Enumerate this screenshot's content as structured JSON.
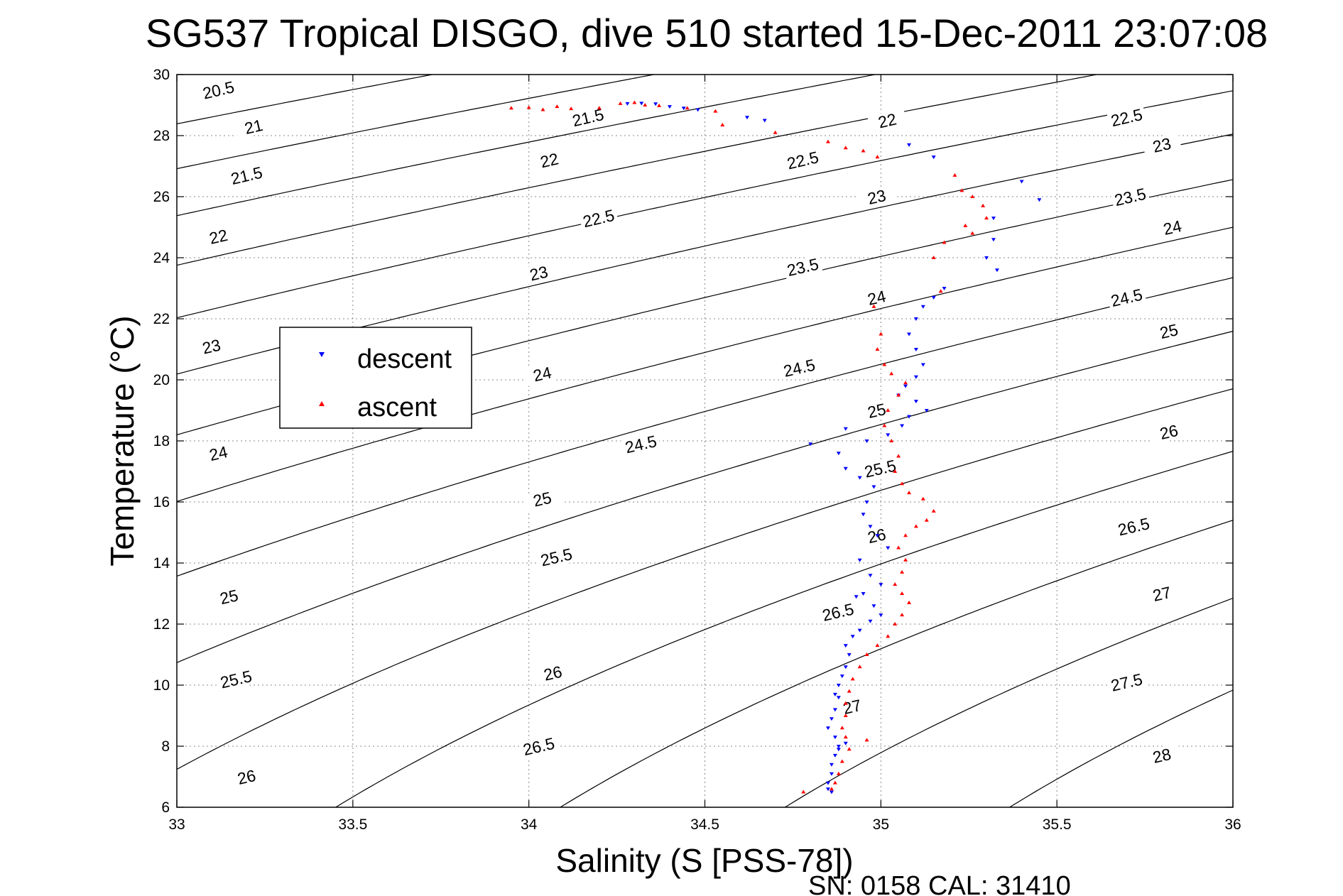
{
  "chart_data": {
    "type": "scatter",
    "title": "SG537 Tropical DISGO, dive 510 started 15-Dec-2011 23:07:08",
    "xlabel": "Salinity (S [PSS-78])",
    "ylabel": "Temperature (°C)",
    "xlim": [
      33,
      36
    ],
    "ylim": [
      6,
      30
    ],
    "xticks": [
      "33",
      "33.5",
      "34",
      "34.5",
      "35",
      "35.5",
      "36"
    ],
    "yticks": [
      "6",
      "8",
      "10",
      "12",
      "14",
      "16",
      "18",
      "20",
      "22",
      "24",
      "26",
      "28",
      "30"
    ],
    "grid": true,
    "legend_placement": "middle-left",
    "footer": "SN: 0158  CAL: 31410",
    "colors": {
      "descent": "#0000ff",
      "ascent": "#ff0000",
      "contour": "#000000"
    },
    "density_contours": [
      {
        "label": "20.5",
        "label_at": [
          33.12,
          29.4
        ]
      },
      {
        "label": "21",
        "label_at": [
          33.22,
          28.2
        ]
      },
      {
        "label": "21.5",
        "label_at": [
          33.2,
          26.6
        ],
        "label2": "21.5",
        "label2_at": [
          34.17,
          28.5
        ]
      },
      {
        "label": "22",
        "label_at": [
          33.12,
          24.6
        ],
        "label2": "22",
        "label2_at": [
          34.06,
          27.1
        ],
        "label3": "22",
        "label3_at": [
          35.02,
          28.4
        ]
      },
      {
        "label": "22.5",
        "label_at": [
          34.2,
          25.2
        ],
        "label2": "22.5",
        "label2_at": [
          34.78,
          27.1
        ],
        "label3": "22.5",
        "label3_at": [
          35.7,
          28.5
        ]
      },
      {
        "label": "23",
        "label_at": [
          33.1,
          21.0
        ],
        "label2": "23",
        "label2_at": [
          34.03,
          23.4
        ],
        "label3": "23",
        "label3_at": [
          34.99,
          25.9
        ],
        "label4": "23",
        "label4_at": [
          35.8,
          27.6
        ]
      },
      {
        "label": "23.5",
        "label_at": [
          34.78,
          23.6
        ],
        "label2": "23.5",
        "label2_at": [
          35.71,
          25.9
        ]
      },
      {
        "label": "24",
        "label_at": [
          33.12,
          17.5
        ],
        "label2": "24",
        "label2_at": [
          34.04,
          20.1
        ],
        "label3": "24",
        "label3_at": [
          34.99,
          22.6
        ],
        "label4": "24",
        "label4_at": [
          35.83,
          24.9
        ]
      },
      {
        "label": "24.5",
        "label_at": [
          34.32,
          17.8
        ],
        "label2": "24.5",
        "label2_at": [
          34.77,
          20.3
        ],
        "label3": "24.5",
        "label3_at": [
          35.7,
          22.6
        ]
      },
      {
        "label": "25",
        "label_at": [
          34.04,
          16.0
        ],
        "label2": "25",
        "label2_at": [
          34.99,
          18.9
        ],
        "label3": "25",
        "label3_at": [
          35.82,
          21.5
        ]
      },
      {
        "label": "25.5",
        "label_at": [
          34.08,
          14.1
        ],
        "label2": "25.5",
        "label2_at": [
          35.0,
          17.0
        ]
      },
      {
        "label": "25",
        "label_at": [
          33.15,
          12.8
        ]
      },
      {
        "label": "26",
        "label_at": [
          34.07,
          10.3
        ],
        "label2": "26",
        "label2_at": [
          34.99,
          14.8
        ],
        "label3": "26",
        "label3_at": [
          35.82,
          18.2
        ]
      },
      {
        "label": "25.5",
        "label_at": [
          33.17,
          10.1
        ]
      },
      {
        "label": "26.5",
        "label_at": [
          34.88,
          12.3
        ],
        "label2": "26.5",
        "label2_at": [
          35.72,
          15.1
        ]
      },
      {
        "label": "26",
        "label_at": [
          33.2,
          6.9
        ],
        "label2": "26.5",
        "label2_at": [
          34.03,
          7.9
        ]
      },
      {
        "label": "27",
        "label_at": [
          34.92,
          9.2
        ],
        "label2": "27",
        "label2_at": [
          35.8,
          12.9
        ]
      },
      {
        "label": "27.5",
        "label_at": [
          35.7,
          10.0
        ]
      },
      {
        "label": "28",
        "label_at": [
          35.8,
          7.6
        ]
      }
    ],
    "series": [
      {
        "name": "descent",
        "marker": "triangle-down",
        "points": [
          [
            34.28,
            29.05
          ],
          [
            34.32,
            29.06
          ],
          [
            34.36,
            29.04
          ],
          [
            34.4,
            28.95
          ],
          [
            34.44,
            28.9
          ],
          [
            34.48,
            28.85
          ],
          [
            34.62,
            28.6
          ],
          [
            34.67,
            28.5
          ],
          [
            35.08,
            27.7
          ],
          [
            35.15,
            27.3
          ],
          [
            35.32,
            25.3
          ],
          [
            35.4,
            26.5
          ],
          [
            35.45,
            25.9
          ],
          [
            35.32,
            24.6
          ],
          [
            35.3,
            24.0
          ],
          [
            35.33,
            23.6
          ],
          [
            35.18,
            23.0
          ],
          [
            35.15,
            22.7
          ],
          [
            35.12,
            22.4
          ],
          [
            35.1,
            22.0
          ],
          [
            35.08,
            21.5
          ],
          [
            35.1,
            21.0
          ],
          [
            35.12,
            20.5
          ],
          [
            35.1,
            20.1
          ],
          [
            35.07,
            19.8
          ],
          [
            35.05,
            19.5
          ],
          [
            35.1,
            19.3
          ],
          [
            35.13,
            19.0
          ],
          [
            35.08,
            18.8
          ],
          [
            35.06,
            18.5
          ],
          [
            34.9,
            18.4
          ],
          [
            35.02,
            18.2
          ],
          [
            34.96,
            18.0
          ],
          [
            34.8,
            17.9
          ],
          [
            34.88,
            17.6
          ],
          [
            34.9,
            17.1
          ],
          [
            34.94,
            16.8
          ],
          [
            34.98,
            16.5
          ],
          [
            34.96,
            16.0
          ],
          [
            34.95,
            15.6
          ],
          [
            34.97,
            15.2
          ],
          [
            34.99,
            14.9
          ],
          [
            35.02,
            14.5
          ],
          [
            34.94,
            14.1
          ],
          [
            34.97,
            13.6
          ],
          [
            35.0,
            13.3
          ],
          [
            34.95,
            13.0
          ],
          [
            34.93,
            12.9
          ],
          [
            34.98,
            12.6
          ],
          [
            35.0,
            12.3
          ],
          [
            34.97,
            12.1
          ],
          [
            34.94,
            11.8
          ],
          [
            34.92,
            11.6
          ],
          [
            34.9,
            11.3
          ],
          [
            34.91,
            11.0
          ],
          [
            34.9,
            10.6
          ],
          [
            34.89,
            10.3
          ],
          [
            34.88,
            10.0
          ],
          [
            34.88,
            9.6
          ],
          [
            34.87,
            9.2
          ],
          [
            34.86,
            8.9
          ],
          [
            34.85,
            8.6
          ],
          [
            34.87,
            8.3
          ],
          [
            34.88,
            8.0
          ],
          [
            34.87,
            7.7
          ],
          [
            34.86,
            7.4
          ],
          [
            34.86,
            7.1
          ],
          [
            34.85,
            6.8
          ],
          [
            34.85,
            6.6
          ],
          [
            34.86,
            6.5
          ],
          [
            34.88,
            7.9
          ],
          [
            34.9,
            8.1
          ],
          [
            34.87,
            9.7
          ]
        ]
      },
      {
        "name": "ascent",
        "marker": "triangle-up",
        "points": [
          [
            33.95,
            28.9
          ],
          [
            34.0,
            28.92
          ],
          [
            34.04,
            28.85
          ],
          [
            34.08,
            28.95
          ],
          [
            34.12,
            28.88
          ],
          [
            34.2,
            28.9
          ],
          [
            34.26,
            29.05
          ],
          [
            34.3,
            29.08
          ],
          [
            34.33,
            29.0
          ],
          [
            34.37,
            28.98
          ],
          [
            34.45,
            28.9
          ],
          [
            34.53,
            28.8
          ],
          [
            34.55,
            28.35
          ],
          [
            34.7,
            28.1
          ],
          [
            34.85,
            27.8
          ],
          [
            34.9,
            27.6
          ],
          [
            34.95,
            27.5
          ],
          [
            34.99,
            27.3
          ],
          [
            35.21,
            26.7
          ],
          [
            35.23,
            26.2
          ],
          [
            35.26,
            26.0
          ],
          [
            35.29,
            25.7
          ],
          [
            35.3,
            25.3
          ],
          [
            35.24,
            25.05
          ],
          [
            35.26,
            24.8
          ],
          [
            35.18,
            24.5
          ],
          [
            35.15,
            24.0
          ],
          [
            35.17,
            22.9
          ],
          [
            34.98,
            22.4
          ],
          [
            35.0,
            21.5
          ],
          [
            34.99,
            21.0
          ],
          [
            35.01,
            20.5
          ],
          [
            35.03,
            20.2
          ],
          [
            35.07,
            19.9
          ],
          [
            35.05,
            19.5
          ],
          [
            35.02,
            19.0
          ],
          [
            35.01,
            18.5
          ],
          [
            35.03,
            18.0
          ],
          [
            35.05,
            17.5
          ],
          [
            35.04,
            17.0
          ],
          [
            35.06,
            16.6
          ],
          [
            35.08,
            16.3
          ],
          [
            35.12,
            16.1
          ],
          [
            35.15,
            15.7
          ],
          [
            35.13,
            15.4
          ],
          [
            35.1,
            15.2
          ],
          [
            35.07,
            14.9
          ],
          [
            35.05,
            14.5
          ],
          [
            35.07,
            14.1
          ],
          [
            35.06,
            13.7
          ],
          [
            35.04,
            13.3
          ],
          [
            35.06,
            13.0
          ],
          [
            35.08,
            12.7
          ],
          [
            35.06,
            12.3
          ],
          [
            35.04,
            12.0
          ],
          [
            35.02,
            11.6
          ],
          [
            34.99,
            11.3
          ],
          [
            34.96,
            11.0
          ],
          [
            34.94,
            10.6
          ],
          [
            34.92,
            10.2
          ],
          [
            34.91,
            9.8
          ],
          [
            34.9,
            9.4
          ],
          [
            34.9,
            9.0
          ],
          [
            34.89,
            8.6
          ],
          [
            34.9,
            8.3
          ],
          [
            34.96,
            8.2
          ],
          [
            34.91,
            7.9
          ],
          [
            34.89,
            7.5
          ],
          [
            34.88,
            7.1
          ],
          [
            34.87,
            6.8
          ],
          [
            34.86,
            6.6
          ],
          [
            34.78,
            6.5
          ]
        ]
      }
    ]
  }
}
